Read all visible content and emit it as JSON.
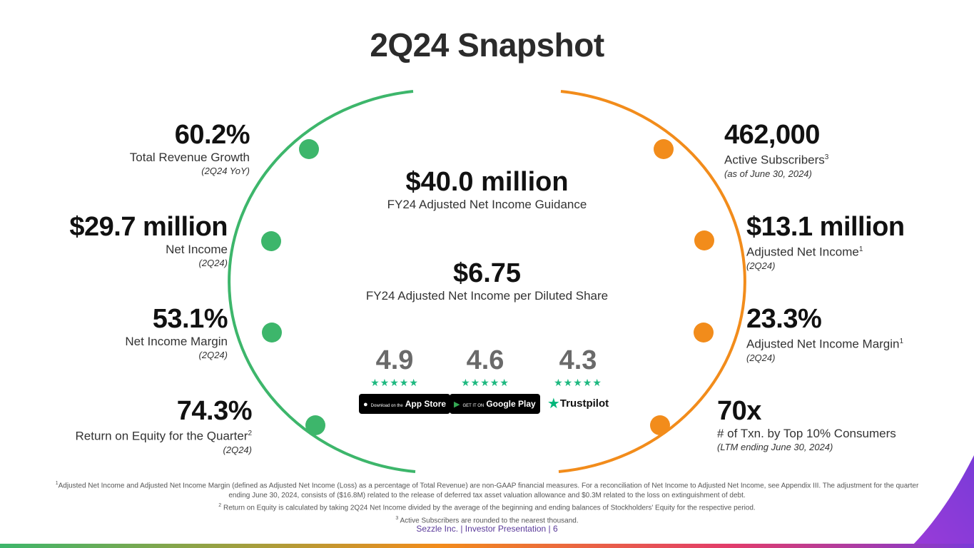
{
  "title": "2Q24 Snapshot",
  "colors": {
    "green": "#3db66b",
    "orange": "#f28c1b",
    "star": "#1eb980",
    "purple": "#7a3bd8"
  },
  "left_metrics": [
    {
      "value": "60.2%",
      "label": "Total Revenue Growth",
      "sup": "",
      "note": "(2Q24 YoY)"
    },
    {
      "value": "$29.7 million",
      "label": "Net Income",
      "sup": "",
      "note": "(2Q24)"
    },
    {
      "value": "53.1%",
      "label": "Net Income Margin",
      "sup": "",
      "note": "(2Q24)"
    },
    {
      "value": "74.3%",
      "label": "Return on Equity for the Quarter",
      "sup": "2",
      "note": "(2Q24)"
    }
  ],
  "right_metrics": [
    {
      "value": "462,000",
      "label": "Active Subscribers",
      "sup": "3",
      "note": "(as of June 30, 2024)"
    },
    {
      "value": "$13.1 million",
      "label": "Adjusted Net Income",
      "sup": "1",
      "note": "(2Q24)"
    },
    {
      "value": "23.3%",
      "label": "Adjusted Net Income Margin",
      "sup": "1",
      "note": "(2Q24)"
    },
    {
      "value": "70x",
      "label": "# of Txn. by Top 10% Consumers",
      "sup": "",
      "note": "(LTM ending June 30, 2024)"
    }
  ],
  "center": [
    {
      "value": "$40.0 million",
      "label": "FY24 Adjusted Net Income Guidance"
    },
    {
      "value": "$6.75",
      "label": "FY24 Adjusted Net Income per Diluted Share"
    }
  ],
  "ratings": [
    {
      "value": "4.9",
      "stars": "★★★★★",
      "badge_small": "Download on the",
      "badge_big": "App Store",
      "icon": "apple-icon"
    },
    {
      "value": "4.6",
      "stars": "★★★★★",
      "badge_small": "GET IT ON",
      "badge_big": "Google Play",
      "icon": "google-play-icon"
    },
    {
      "value": "4.3",
      "stars": "★★★★★",
      "badge_big": "Trustpilot",
      "icon": "trustpilot-star-icon"
    }
  ],
  "footnotes": {
    "n1_mark": "1",
    "n1": "Adjusted Net Income and Adjusted Net Income Margin (defined as Adjusted Net Income (Loss) as a percentage of Total Revenue) are non-GAAP financial measures. For a reconciliation of Net Income to Adjusted Net Income, see Appendix III. The adjustment for the quarter ending June 30, 2024, consists of ($16.8M) related to the release of deferred tax asset valuation allowance and $0.3M related to the loss on extinguishment of debt.",
    "n2_mark": "2",
    "n2": "Return on Equity is calculated by taking 2Q24 Net Income divided by the average of the beginning and ending balances of Stockholders' Equity for the respective period.",
    "n3_mark": "3",
    "n3": "Active Subscribers are rounded to the nearest thousand."
  },
  "footer": "Sezzle Inc. | Investor Presentation | 6"
}
